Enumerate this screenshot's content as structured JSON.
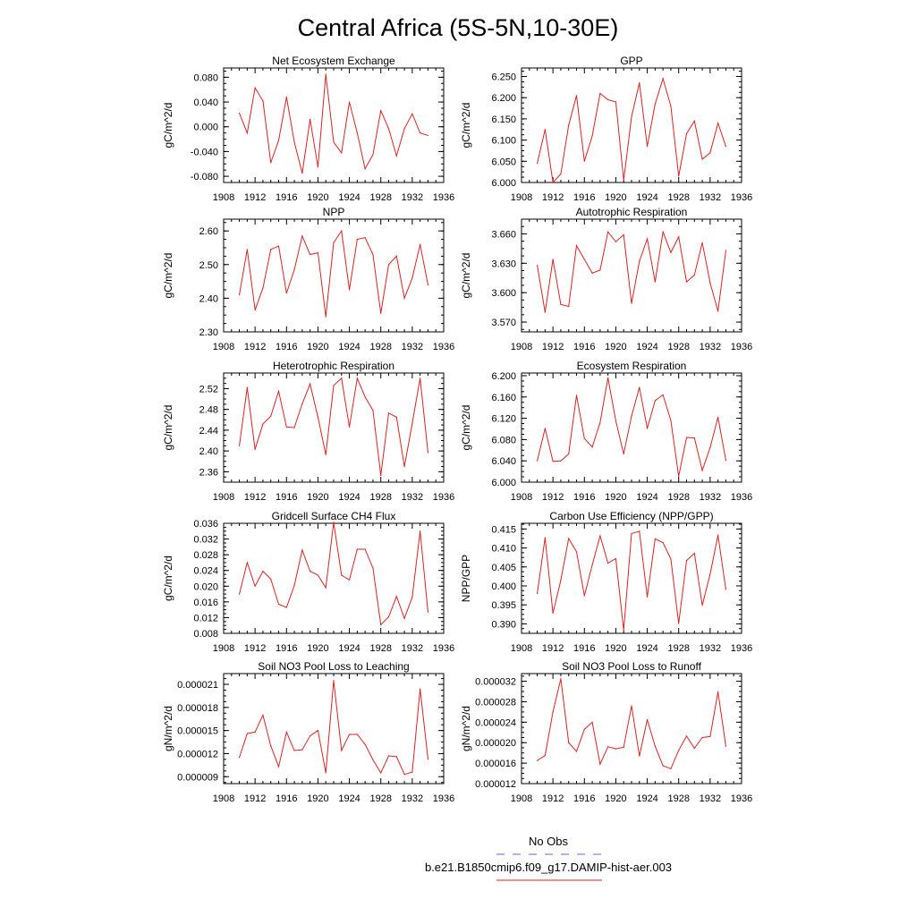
{
  "title": "Central Africa (5S-5N,10-30E)",
  "legend": {
    "items": [
      {
        "label": "No Obs",
        "color": "#6666dd",
        "dashed": true
      },
      {
        "label": "b.e21.B1850cmip6.f09_g17.DAMIP-hist-aer.003",
        "color": "#dd2222",
        "dashed": false
      }
    ]
  },
  "chart_data": [
    {
      "type": "line",
      "title": "Net Ecosystem Exchange",
      "ylabel": "gC/m^2/d",
      "xlim": [
        1908,
        1936
      ],
      "ylim": [
        -0.09,
        0.095
      ],
      "x_ticks": [
        "1908",
        "1912",
        "1916",
        "1920",
        "1924",
        "1928",
        "1932",
        "1936"
      ],
      "y_ticks": [
        -0.08,
        -0.04,
        0.0,
        0.04,
        0.08
      ],
      "y_tick_labels": [
        "-0.080",
        "-0.040",
        "0.000",
        "0.040",
        "0.080"
      ],
      "x": [
        1910,
        1911,
        1912,
        1913,
        1914,
        1915,
        1916,
        1917,
        1918,
        1919,
        1920,
        1921,
        1922,
        1923,
        1924,
        1925,
        1926,
        1927,
        1928,
        1929,
        1930,
        1931,
        1932,
        1933,
        1934
      ],
      "series": [
        {
          "values": [
            0.022,
            -0.01,
            0.063,
            0.042,
            -0.058,
            -0.022,
            0.048,
            -0.025,
            -0.075,
            0.012,
            -0.065,
            0.085,
            -0.025,
            -0.042,
            0.04,
            -0.01,
            -0.068,
            -0.045,
            0.026,
            -0.003,
            -0.047,
            -0.003,
            0.021,
            -0.01,
            -0.014
          ],
          "color": "#dd2222"
        }
      ]
    },
    {
      "type": "line",
      "title": "GPP",
      "ylabel": "gC/m^2/d",
      "xlim": [
        1908,
        1936
      ],
      "ylim": [
        6.0,
        6.27
      ],
      "x_ticks": [
        "1908",
        "1912",
        "1916",
        "1920",
        "1924",
        "1928",
        "1932",
        "1936"
      ],
      "y_ticks": [
        6.0,
        6.05,
        6.1,
        6.15,
        6.2,
        6.25
      ],
      "y_tick_labels": [
        "6.000",
        "6.050",
        "6.100",
        "6.150",
        "6.200",
        "6.250"
      ],
      "x": [
        1910,
        1911,
        1912,
        1913,
        1914,
        1915,
        1916,
        1917,
        1918,
        1919,
        1920,
        1921,
        1922,
        1923,
        1924,
        1925,
        1926,
        1927,
        1928,
        1929,
        1930,
        1931,
        1932,
        1933,
        1934
      ],
      "series": [
        {
          "values": [
            6.045,
            6.125,
            6.0,
            6.02,
            6.135,
            6.205,
            6.05,
            6.11,
            6.21,
            6.195,
            6.19,
            6.005,
            6.155,
            6.235,
            6.085,
            6.185,
            6.245,
            6.18,
            6.015,
            6.115,
            6.145,
            6.055,
            6.07,
            6.14,
            6.085
          ],
          "color": "#dd2222"
        }
      ]
    },
    {
      "type": "line",
      "title": "NPP",
      "ylabel": "gC/m^2/d",
      "xlim": [
        1908,
        1936
      ],
      "ylim": [
        2.3,
        2.635
      ],
      "x_ticks": [
        "1908",
        "1912",
        "1916",
        "1920",
        "1924",
        "1928",
        "1932",
        "1936"
      ],
      "y_ticks": [
        2.3,
        2.4,
        2.5,
        2.6
      ],
      "y_tick_labels": [
        "2.30",
        "2.40",
        "2.50",
        "2.60"
      ],
      "x": [
        1910,
        1911,
        1912,
        1913,
        1914,
        1915,
        1916,
        1917,
        1918,
        1919,
        1920,
        1921,
        1922,
        1923,
        1924,
        1925,
        1926,
        1927,
        1928,
        1929,
        1930,
        1931,
        1932,
        1933,
        1934
      ],
      "series": [
        {
          "values": [
            2.41,
            2.545,
            2.365,
            2.43,
            2.545,
            2.555,
            2.415,
            2.485,
            2.585,
            2.53,
            2.535,
            2.345,
            2.565,
            2.6,
            2.425,
            2.575,
            2.58,
            2.53,
            2.355,
            2.5,
            2.525,
            2.4,
            2.46,
            2.56,
            2.44
          ],
          "color": "#dd2222"
        }
      ]
    },
    {
      "type": "line",
      "title": "Autotrophic Respiration",
      "ylabel": "gC/m^2/d",
      "xlim": [
        1908,
        1936
      ],
      "ylim": [
        3.56,
        3.675
      ],
      "x_ticks": [
        "1908",
        "1912",
        "1916",
        "1920",
        "1924",
        "1928",
        "1932",
        "1936"
      ],
      "y_ticks": [
        3.57,
        3.6,
        3.63,
        3.66
      ],
      "y_tick_labels": [
        "3.570",
        "3.600",
        "3.630",
        "3.660"
      ],
      "x": [
        1910,
        1911,
        1912,
        1913,
        1914,
        1915,
        1916,
        1917,
        1918,
        1919,
        1920,
        1921,
        1922,
        1923,
        1924,
        1925,
        1926,
        1927,
        1928,
        1929,
        1930,
        1931,
        1932,
        1933,
        1934
      ],
      "series": [
        {
          "values": [
            3.628,
            3.58,
            3.634,
            3.588,
            3.586,
            3.648,
            3.634,
            3.62,
            3.623,
            3.662,
            3.652,
            3.659,
            3.589,
            3.632,
            3.655,
            3.611,
            3.662,
            3.641,
            3.657,
            3.611,
            3.618,
            3.651,
            3.61,
            3.581,
            3.643
          ],
          "color": "#dd2222"
        }
      ]
    },
    {
      "type": "line",
      "title": "Heterotrophic Respiration",
      "ylabel": "gC/m^2/d",
      "xlim": [
        1908,
        1936
      ],
      "ylim": [
        2.34,
        2.55
      ],
      "x_ticks": [
        "1908",
        "1912",
        "1916",
        "1920",
        "1924",
        "1928",
        "1932",
        "1936"
      ],
      "y_ticks": [
        2.36,
        2.4,
        2.44,
        2.48,
        2.52
      ],
      "y_tick_labels": [
        "2.36",
        "2.40",
        "2.44",
        "2.48",
        "2.52"
      ],
      "x": [
        1910,
        1911,
        1912,
        1913,
        1914,
        1915,
        1916,
        1917,
        1918,
        1919,
        1920,
        1921,
        1922,
        1923,
        1924,
        1925,
        1926,
        1927,
        1928,
        1929,
        1930,
        1931,
        1932,
        1933,
        1934
      ],
      "series": [
        {
          "values": [
            2.41,
            2.522,
            2.403,
            2.452,
            2.467,
            2.515,
            2.446,
            2.445,
            2.491,
            2.529,
            2.465,
            2.393,
            2.526,
            2.54,
            2.446,
            2.54,
            2.504,
            2.478,
            2.353,
            2.473,
            2.465,
            2.37,
            2.453,
            2.54,
            2.397
          ],
          "color": "#dd2222"
        }
      ]
    },
    {
      "type": "line",
      "title": "Ecosystem Respiration",
      "ylabel": "gC/m^2/d",
      "xlim": [
        1908,
        1936
      ],
      "ylim": [
        6.0,
        6.205
      ],
      "x_ticks": [
        "1908",
        "1912",
        "1916",
        "1920",
        "1924",
        "1928",
        "1932",
        "1936"
      ],
      "y_ticks": [
        6.0,
        6.04,
        6.08,
        6.12,
        6.16,
        6.2
      ],
      "y_tick_labels": [
        "6.000",
        "6.040",
        "6.080",
        "6.120",
        "6.160",
        "6.200"
      ],
      "x": [
        1910,
        1911,
        1912,
        1913,
        1914,
        1915,
        1916,
        1917,
        1918,
        1919,
        1920,
        1921,
        1922,
        1923,
        1924,
        1925,
        1926,
        1927,
        1928,
        1929,
        1930,
        1931,
        1932,
        1933,
        1934
      ],
      "series": [
        {
          "values": [
            6.04,
            6.101,
            6.039,
            6.04,
            6.053,
            6.163,
            6.082,
            6.066,
            6.112,
            6.196,
            6.115,
            6.053,
            6.124,
            6.178,
            6.101,
            6.153,
            6.164,
            6.116,
            6.011,
            6.084,
            6.083,
            6.022,
            6.065,
            6.122,
            6.041
          ],
          "color": "#dd2222"
        }
      ]
    },
    {
      "type": "line",
      "title": "Gridcell Surface CH4 Flux",
      "ylabel": "gC/m^2/d",
      "xlim": [
        1908,
        1936
      ],
      "ylim": [
        0.008,
        0.036
      ],
      "x_ticks": [
        "1908",
        "1912",
        "1916",
        "1920",
        "1924",
        "1928",
        "1932",
        "1936"
      ],
      "y_ticks": [
        0.008,
        0.012,
        0.016,
        0.02,
        0.024,
        0.028,
        0.032,
        0.036
      ],
      "y_tick_labels": [
        "0.008",
        "0.012",
        "0.016",
        "0.020",
        "0.024",
        "0.028",
        "0.032",
        "0.036"
      ],
      "x": [
        1910,
        1911,
        1912,
        1913,
        1914,
        1915,
        1916,
        1917,
        1918,
        1919,
        1920,
        1921,
        1922,
        1923,
        1924,
        1925,
        1926,
        1927,
        1928,
        1929,
        1930,
        1931,
        1932,
        1933,
        1934
      ],
      "series": [
        {
          "values": [
            0.018,
            0.026,
            0.02,
            0.0238,
            0.0218,
            0.0154,
            0.0146,
            0.0202,
            0.0292,
            0.0238,
            0.0228,
            0.0196,
            0.0362,
            0.0228,
            0.0216,
            0.0294,
            0.0294,
            0.0246,
            0.0102,
            0.0122,
            0.0174,
            0.0118,
            0.0172,
            0.034,
            0.0134
          ],
          "color": "#dd2222"
        }
      ]
    },
    {
      "type": "line",
      "title": "Carbon Use Efficiency (NPP/GPP)",
      "ylabel": "NPP/GPP",
      "xlim": [
        1908,
        1936
      ],
      "ylim": [
        0.3875,
        0.4165
      ],
      "x_ticks": [
        "1908",
        "1912",
        "1916",
        "1920",
        "1924",
        "1928",
        "1932",
        "1936"
      ],
      "y_ticks": [
        0.39,
        0.395,
        0.4,
        0.405,
        0.41,
        0.415
      ],
      "y_tick_labels": [
        "0.390",
        "0.395",
        "0.400",
        "0.405",
        "0.410",
        "0.415"
      ],
      "x": [
        1910,
        1911,
        1912,
        1913,
        1914,
        1915,
        1916,
        1917,
        1918,
        1919,
        1920,
        1921,
        1922,
        1923,
        1924,
        1925,
        1926,
        1927,
        1928,
        1929,
        1930,
        1931,
        1932,
        1933,
        1934
      ],
      "series": [
        {
          "values": [
            0.398,
            0.4127,
            0.3928,
            0.4015,
            0.4125,
            0.409,
            0.3974,
            0.4055,
            0.4132,
            0.406,
            0.4072,
            0.3883,
            0.4138,
            0.4144,
            0.3971,
            0.4124,
            0.4114,
            0.4071,
            0.3901,
            0.4067,
            0.4086,
            0.3949,
            0.4031,
            0.4134,
            0.3991
          ],
          "color": "#dd2222"
        }
      ]
    },
    {
      "type": "line",
      "title": "Soil NO3 Pool Loss to Leaching",
      "ylabel": "gN/m^2/d",
      "xlim": [
        1908,
        1936
      ],
      "ylim": [
        8.1e-06,
        2.24e-05
      ],
      "x_ticks": [
        "1908",
        "1912",
        "1916",
        "1920",
        "1924",
        "1928",
        "1932",
        "1936"
      ],
      "y_ticks": [
        9e-06,
        1.2e-05,
        1.5e-05,
        1.8e-05,
        2.1e-05
      ],
      "y_tick_labels": [
        "0.000009",
        "0.000012",
        "0.000015",
        "0.000018",
        "0.000021"
      ],
      "x": [
        1910,
        1911,
        1912,
        1913,
        1914,
        1915,
        1916,
        1917,
        1918,
        1919,
        1920,
        1921,
        1922,
        1923,
        1924,
        1925,
        1926,
        1927,
        1928,
        1929,
        1930,
        1931,
        1932,
        1933,
        1934
      ],
      "series": [
        {
          "values": [
            1.15e-05,
            1.46e-05,
            1.48e-05,
            1.7e-05,
            1.3e-05,
            1.03e-05,
            1.48e-05,
            1.24e-05,
            1.25e-05,
            1.43e-05,
            1.5e-05,
            9.5e-06,
            2.15e-05,
            1.24e-05,
            1.45e-05,
            1.45e-05,
            1.32e-05,
            1.12e-05,
            9.5e-06,
            1.17e-05,
            1.16e-05,
            9.3e-06,
            9.6e-06,
            2.04e-05,
            1.13e-05
          ],
          "color": "#dd2222"
        }
      ]
    },
    {
      "type": "line",
      "title": "Soil NO3 Pool Loss to Runoff",
      "ylabel": "gN/m^2/d",
      "xlim": [
        1908,
        1936
      ],
      "ylim": [
        1.2e-05,
        3.35e-05
      ],
      "x_ticks": [
        "1908",
        "1912",
        "1916",
        "1920",
        "1924",
        "1928",
        "1932",
        "1936"
      ],
      "y_ticks": [
        1.2e-05,
        1.6e-05,
        2e-05,
        2.4e-05,
        2.8e-05,
        3.2e-05
      ],
      "y_tick_labels": [
        "0.000012",
        "0.000016",
        "0.000020",
        "0.000024",
        "0.000028",
        "0.000032"
      ],
      "x": [
        1910,
        1911,
        1912,
        1913,
        1914,
        1915,
        1916,
        1917,
        1918,
        1919,
        1920,
        1921,
        1922,
        1923,
        1924,
        1925,
        1926,
        1927,
        1928,
        1929,
        1930,
        1931,
        1932,
        1933,
        1934
      ],
      "series": [
        {
          "values": [
            1.65e-05,
            1.75e-05,
            2.6e-05,
            3.25e-05,
            2e-05,
            1.83e-05,
            2.26e-05,
            2.4e-05,
            1.58e-05,
            1.92e-05,
            1.88e-05,
            1.91e-05,
            2.72e-05,
            1.74e-05,
            2.45e-05,
            1.93e-05,
            1.55e-05,
            1.49e-05,
            1.85e-05,
            2.13e-05,
            1.89e-05,
            2.1e-05,
            2.12e-05,
            2.99e-05,
            1.93e-05
          ],
          "color": "#dd2222"
        }
      ]
    }
  ]
}
